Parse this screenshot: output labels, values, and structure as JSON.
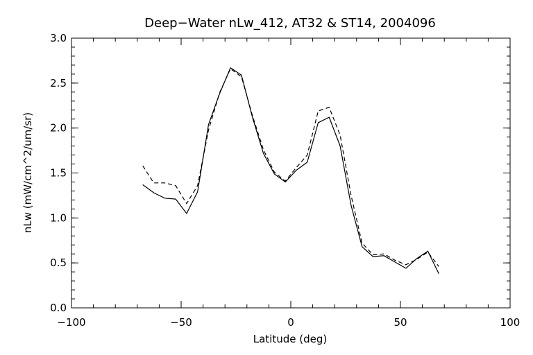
{
  "chart_data": {
    "type": "line",
    "title": "Deep−Water nLw_412, AT32 & ST14, 2004096",
    "xlabel": "Latitude (deg)",
    "ylabel": "nLw (mW/cm^2/um/sr)",
    "xlim": [
      -100,
      100
    ],
    "ylim": [
      0.0,
      3.0
    ],
    "x_ticks": [
      -100,
      -50,
      0,
      50,
      100
    ],
    "x_tick_labels": [
      "−100",
      "−50",
      "0",
      "50",
      "100"
    ],
    "y_ticks": [
      0.0,
      0.5,
      1.0,
      1.5,
      2.0,
      2.5,
      3.0
    ],
    "y_tick_labels": [
      "0.0",
      "0.5",
      "1.0",
      "1.5",
      "2.0",
      "2.5",
      "3.0"
    ],
    "grid": false,
    "series": [
      {
        "style": "solid",
        "x": [
          -67.5,
          -62.5,
          -57.5,
          -52.5,
          -47.5,
          -42.5,
          -37.5,
          -32.5,
          -27.5,
          -22.5,
          -17.5,
          -12.5,
          -7.5,
          -2.5,
          2.5,
          7.5,
          12.5,
          17.5,
          22.5,
          27.5,
          32.5,
          37.5,
          42.5,
          47.5,
          52.5,
          57.5,
          62.5,
          67.5
        ],
        "y": [
          1.37,
          1.28,
          1.22,
          1.21,
          1.05,
          1.29,
          2.04,
          2.38,
          2.67,
          2.59,
          2.12,
          1.72,
          1.49,
          1.4,
          1.53,
          1.62,
          2.06,
          2.12,
          1.8,
          1.14,
          0.68,
          0.57,
          0.58,
          0.51,
          0.44,
          0.55,
          0.63,
          0.38
        ]
      },
      {
        "style": "dashed",
        "x": [
          -67.5,
          -62.5,
          -57.5,
          -52.5,
          -47.5,
          -42.5,
          -37.5,
          -32.5,
          -27.5,
          -22.5,
          -17.5,
          -12.5,
          -7.5,
          -2.5,
          2.5,
          7.5,
          12.5,
          17.5,
          22.5,
          27.5,
          32.5,
          37.5,
          42.5,
          47.5,
          52.5,
          57.5,
          62.5,
          67.5
        ],
        "y": [
          1.58,
          1.39,
          1.39,
          1.36,
          1.16,
          1.36,
          1.98,
          2.39,
          2.66,
          2.57,
          2.14,
          1.76,
          1.51,
          1.41,
          1.56,
          1.7,
          2.19,
          2.23,
          1.92,
          1.25,
          0.72,
          0.59,
          0.6,
          0.53,
          0.48,
          0.54,
          0.62,
          0.46
        ]
      }
    ]
  }
}
